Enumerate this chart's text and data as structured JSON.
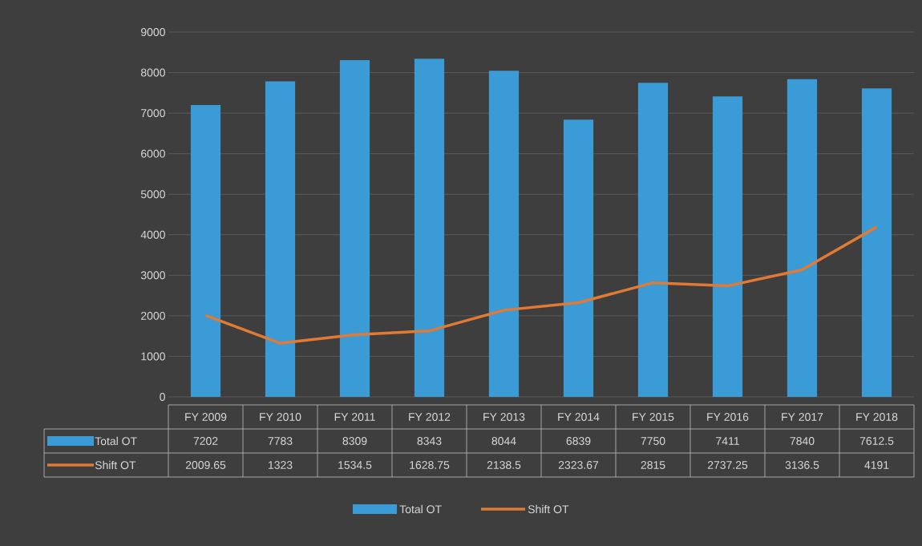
{
  "chart_data": {
    "type": "bar",
    "categories": [
      "FY 2009",
      "FY 2010",
      "FY 2011",
      "FY 2012",
      "FY 2013",
      "FY 2014",
      "FY 2015",
      "FY 2016",
      "FY 2017",
      "FY 2018"
    ],
    "series": [
      {
        "name": "Total OT",
        "color": "#3b9bd6",
        "values": [
          7202,
          7783,
          8309,
          8343,
          8044,
          6839,
          7750,
          7411,
          7840,
          7612.5
        ]
      },
      {
        "name": "Shift OT",
        "type": "line",
        "color": "#e07a35",
        "values": [
          2009.65,
          1323,
          1534.5,
          1628.75,
          2138.5,
          2323.67,
          2815,
          2737.25,
          3136.5,
          4191
        ]
      }
    ],
    "ylim": [
      0,
      9000
    ],
    "yticks": [
      0,
      1000,
      2000,
      3000,
      4000,
      5000,
      6000,
      7000,
      8000,
      9000
    ],
    "grid": "y",
    "data_labels": true,
    "legend": "bottom"
  }
}
